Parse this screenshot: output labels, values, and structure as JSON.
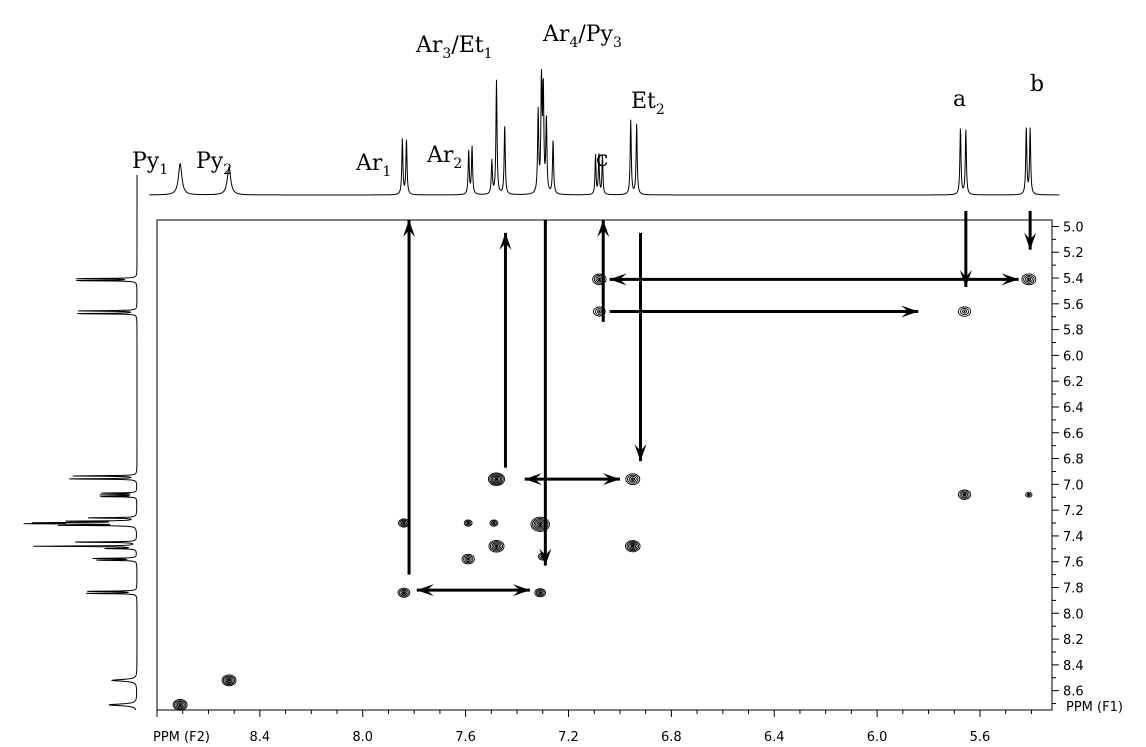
{
  "chart_data": {
    "type": "heatmap",
    "xlabel": "PPM (F2)",
    "ylabel": "PPM (F1)",
    "xlim": [
      8.8,
      5.32
    ],
    "ylim": [
      4.95,
      8.75
    ],
    "x_ticks": [
      8.4,
      8.0,
      7.6,
      7.2,
      6.8,
      6.4,
      6.0,
      5.6
    ],
    "y_ticks": [
      5.0,
      5.2,
      5.4,
      5.6,
      5.8,
      6.0,
      6.2,
      6.4,
      6.6,
      6.8,
      7.0,
      7.2,
      7.4,
      7.6,
      7.8,
      8.0,
      8.2,
      8.4,
      8.6
    ],
    "peak_labels": [
      {
        "id": "py1",
        "base": "Py",
        "sub": "1",
        "shift": 8.71
      },
      {
        "id": "py2",
        "base": "Py",
        "sub": "2",
        "shift": 8.52
      },
      {
        "id": "ar1",
        "base": "Ar",
        "sub": "1",
        "shift": 7.84
      },
      {
        "id": "ar2",
        "base": "Ar",
        "sub": "2",
        "shift": 7.58
      },
      {
        "id": "ar3et1",
        "base": "Ar",
        "sub": "3",
        "base2": "/Et",
        "sub2": "1",
        "shift": 7.47
      },
      {
        "id": "ar4py3",
        "base": "Ar",
        "sub": "4",
        "base2": "/Py",
        "sub2": "3",
        "shift": 7.3
      },
      {
        "id": "c",
        "base": "c",
        "shift": 7.08
      },
      {
        "id": "et2",
        "base": "Et",
        "sub": "2",
        "shift": 6.95
      },
      {
        "id": "a",
        "base": "a",
        "shift": 5.67
      },
      {
        "id": "b",
        "base": "b",
        "shift": 5.41
      }
    ],
    "spectrum_1d": [
      {
        "shift": 8.71,
        "h": 0.26,
        "w": 0.008
      },
      {
        "shift": 8.52,
        "h": 0.23,
        "w": 0.008
      },
      {
        "shift": 7.846,
        "h": 0.46,
        "w": 0.0025
      },
      {
        "shift": 7.83,
        "h": 0.46,
        "w": 0.0025
      },
      {
        "shift": 7.588,
        "h": 0.36,
        "w": 0.0025
      },
      {
        "shift": 7.575,
        "h": 0.4,
        "w": 0.0025
      },
      {
        "shift": 7.498,
        "h": 0.28,
        "w": 0.0025
      },
      {
        "shift": 7.48,
        "h": 0.95,
        "w": 0.0025
      },
      {
        "shift": 7.448,
        "h": 0.58,
        "w": 0.0025
      },
      {
        "shift": 7.318,
        "h": 0.68,
        "w": 0.0025
      },
      {
        "shift": 7.305,
        "h": 1.0,
        "w": 0.0025
      },
      {
        "shift": 7.298,
        "h": 0.85,
        "w": 0.0025
      },
      {
        "shift": 7.286,
        "h": 0.62,
        "w": 0.0025
      },
      {
        "shift": 7.26,
        "h": 0.45,
        "w": 0.0025
      },
      {
        "shift": 7.095,
        "h": 0.33,
        "w": 0.0022
      },
      {
        "shift": 7.082,
        "h": 0.34,
        "w": 0.0022
      },
      {
        "shift": 7.068,
        "h": 0.33,
        "w": 0.0022
      },
      {
        "shift": 6.958,
        "h": 0.62,
        "w": 0.0025
      },
      {
        "shift": 6.935,
        "h": 0.59,
        "w": 0.0025
      },
      {
        "shift": 5.676,
        "h": 0.56,
        "w": 0.0025
      },
      {
        "shift": 5.655,
        "h": 0.54,
        "w": 0.0025
      },
      {
        "shift": 5.42,
        "h": 0.56,
        "w": 0.0025
      },
      {
        "shift": 5.405,
        "h": 0.55,
        "w": 0.0025
      }
    ],
    "cross_peaks": [
      {
        "x": 8.71,
        "y": 8.71,
        "size": 1.0,
        "rings": 5
      },
      {
        "x": 8.52,
        "y": 8.52,
        "size": 1.0,
        "rings": 5
      },
      {
        "x": 7.84,
        "y": 7.84,
        "size": 0.8,
        "rings": 4
      },
      {
        "x": 7.84,
        "y": 7.3,
        "size": 0.7,
        "rings": 4
      },
      {
        "x": 7.59,
        "y": 7.3,
        "size": 0.45,
        "rings": 3
      },
      {
        "x": 7.59,
        "y": 7.58,
        "size": 0.85,
        "rings": 4
      },
      {
        "x": 7.49,
        "y": 7.3,
        "size": 0.45,
        "rings": 3
      },
      {
        "x": 7.48,
        "y": 6.96,
        "size": 1.2,
        "rings": 6
      },
      {
        "x": 7.48,
        "y": 7.48,
        "size": 1.1,
        "rings": 5
      },
      {
        "x": 7.31,
        "y": 7.31,
        "size": 1.4,
        "rings": 6
      },
      {
        "x": 7.31,
        "y": 7.84,
        "size": 0.7,
        "rings": 4
      },
      {
        "x": 7.3,
        "y": 7.56,
        "size": 0.55,
        "rings": 3
      },
      {
        "x": 7.08,
        "y": 5.41,
        "size": 0.95,
        "rings": 4
      },
      {
        "x": 7.08,
        "y": 5.66,
        "size": 0.8,
        "rings": 3
      },
      {
        "x": 6.95,
        "y": 6.96,
        "size": 1.0,
        "rings": 4
      },
      {
        "x": 6.95,
        "y": 7.48,
        "size": 1.05,
        "rings": 5
      },
      {
        "x": 5.66,
        "y": 5.66,
        "size": 0.85,
        "rings": 3
      },
      {
        "x": 5.66,
        "y": 7.08,
        "size": 0.85,
        "rings": 4
      },
      {
        "x": 5.41,
        "y": 5.41,
        "size": 1.0,
        "rings": 4
      },
      {
        "x": 5.41,
        "y": 7.08,
        "size": 0.3,
        "rings": 2
      }
    ],
    "arrows": [
      {
        "x1": 7.82,
        "y1": 7.7,
        "x2": 7.82,
        "y2": 4.95,
        "heads": "end"
      },
      {
        "x1": 7.445,
        "y1": 6.87,
        "x2": 7.445,
        "y2": 5.05,
        "heads": "end"
      },
      {
        "x1": 7.29,
        "y1": 4.95,
        "x2": 7.29,
        "y2": 7.63,
        "heads": "end"
      },
      {
        "x1": 7.065,
        "y1": 5.74,
        "x2": 7.065,
        "y2": 4.95,
        "heads": "end"
      },
      {
        "x1": 6.92,
        "y1": 5.05,
        "x2": 6.92,
        "y2": 6.82,
        "heads": "end"
      },
      {
        "x1": 5.655,
        "y1": 4.88,
        "x2": 5.655,
        "y2": 5.47,
        "heads": "end"
      },
      {
        "x1": 5.405,
        "y1": 4.88,
        "x2": 5.405,
        "y2": 5.18,
        "heads": "end"
      },
      {
        "x1": 7.04,
        "y1": 5.41,
        "x2": 5.45,
        "y2": 5.41,
        "heads": "both"
      },
      {
        "x1": 7.04,
        "y1": 5.66,
        "x2": 5.84,
        "y2": 5.66,
        "heads": "end"
      },
      {
        "x1": 7.37,
        "y1": 6.96,
        "x2": 7.0,
        "y2": 6.96,
        "heads": "both"
      },
      {
        "x1": 7.79,
        "y1": 7.82,
        "x2": 7.35,
        "y2": 7.82,
        "heads": "both"
      }
    ]
  }
}
